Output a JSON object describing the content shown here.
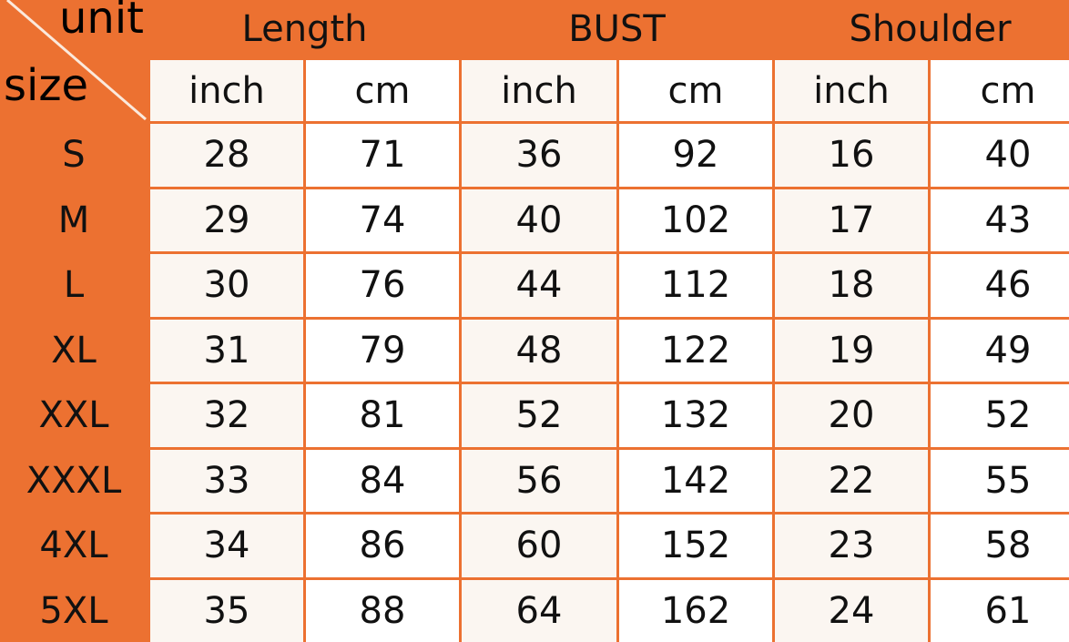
{
  "corner": {
    "top": "unit",
    "bottom": "size"
  },
  "groups": [
    "Length",
    "BUST",
    "Shoulder"
  ],
  "units": [
    "inch",
    "cm",
    "inch",
    "cm",
    "inch",
    "cm"
  ],
  "rows": [
    {
      "size": "S",
      "values": [
        "28",
        "71",
        "36",
        "92",
        "16",
        "40"
      ]
    },
    {
      "size": "M",
      "values": [
        "29",
        "74",
        "40",
        "102",
        "17",
        "43"
      ]
    },
    {
      "size": "L",
      "values": [
        "30",
        "76",
        "44",
        "112",
        "18",
        "46"
      ]
    },
    {
      "size": "XL",
      "values": [
        "31",
        "79",
        "48",
        "122",
        "19",
        "49"
      ]
    },
    {
      "size": "XXL",
      "values": [
        "32",
        "81",
        "52",
        "132",
        "20",
        "52"
      ]
    },
    {
      "size": "XXXL",
      "values": [
        "33",
        "84",
        "56",
        "142",
        "22",
        "55"
      ]
    },
    {
      "size": "4XL",
      "values": [
        "34",
        "86",
        "60",
        "152",
        "23",
        "58"
      ]
    },
    {
      "size": "5XL",
      "values": [
        "35",
        "88",
        "64",
        "162",
        "24",
        "61"
      ]
    }
  ],
  "colors": {
    "header": "#ec7131",
    "cell": "#ffffff",
    "inch_cell": "#fbf6f1"
  }
}
